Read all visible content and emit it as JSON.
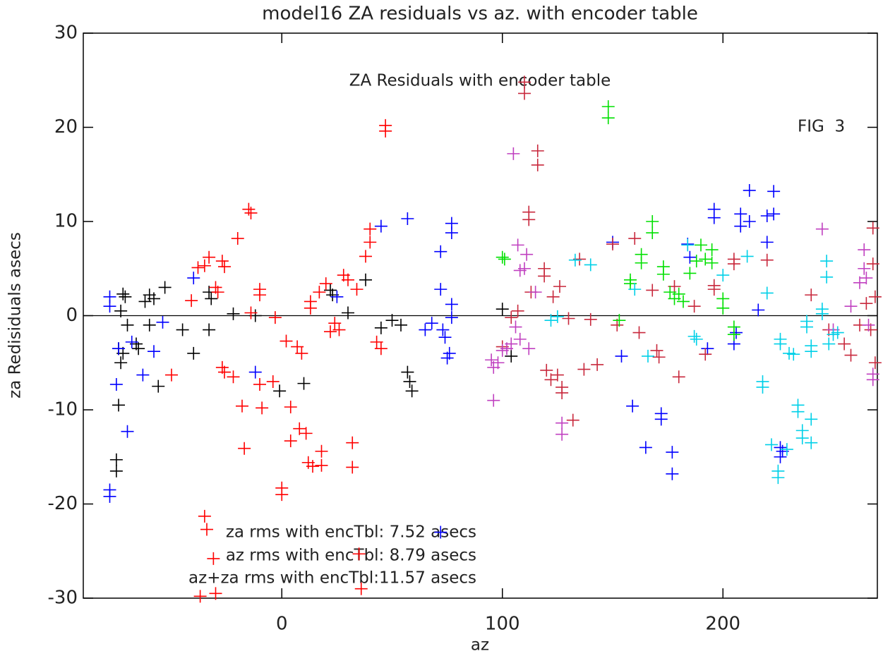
{
  "chart_data": {
    "type": "scatter",
    "title": "model16 ZA residuals vs az. with encoder table",
    "subtitle": "ZA Residuals with encoder table",
    "fig_label": "FIG  3",
    "notes": [
      "za rms with encTbl: 7.52 asecs",
      "az rms with encTbl: 8.79 asecs",
      "az+za rms with encTbl:11.57 asecs"
    ],
    "xlabel": "az",
    "ylabel": "za Redisiduals asecs",
    "xlim": [
      -90,
      270
    ],
    "ylim": [
      -30,
      30
    ],
    "xticks": [
      0,
      100,
      200
    ],
    "yticks": [
      -30,
      -20,
      -10,
      0,
      10,
      20,
      30
    ],
    "hline": 0,
    "series": [
      {
        "color": "#000000",
        "x": [
          -73,
          -72,
          -71,
          -70,
          -74,
          -73,
          -72,
          -74,
          -75,
          -75,
          -65,
          -66,
          -62,
          -60,
          -60,
          -58,
          -56,
          -53,
          -45,
          -40,
          -33,
          -33,
          -32,
          -22,
          -12,
          -1,
          22,
          23,
          30,
          38,
          45,
          50,
          54,
          57,
          58,
          59,
          100,
          104,
          10
        ],
        "values": [
          0.5,
          2.3,
          2,
          -1,
          -3.5,
          -5,
          -4,
          -9.5,
          -15.3,
          -16.5,
          -3.5,
          -3,
          1.5,
          2.2,
          -1,
          1.8,
          -7.5,
          3,
          -1.5,
          -4,
          -1.5,
          2.5,
          1.8,
          0.2,
          0,
          -8,
          2.7,
          2.2,
          0.3,
          3.8,
          -1.3,
          -0.5,
          -1,
          -6,
          -7,
          -8,
          0.7,
          -4.3,
          -7.2
        ]
      },
      {
        "color": "#0000ff",
        "x": [
          -78,
          -78,
          -78,
          -78,
          -75,
          -74,
          -70,
          -68,
          -63,
          -58,
          -54,
          -40,
          -12,
          25,
          45,
          57,
          65,
          68,
          72,
          72,
          72,
          73,
          74,
          75,
          76,
          77,
          77,
          77,
          77,
          150,
          154,
          159,
          165,
          172,
          172,
          177,
          177,
          184,
          185,
          193,
          196,
          196,
          205,
          206,
          208,
          208,
          212,
          212,
          216,
          220,
          220,
          223,
          223,
          226,
          226,
          227
        ],
        "values": [
          -18.5,
          -19.2,
          2,
          1,
          -7.3,
          -3.5,
          -12.3,
          -2.8,
          -6.3,
          -3.8,
          -0.7,
          4,
          -6,
          2,
          9.5,
          10.3,
          -1.5,
          -0.8,
          6.8,
          2.8,
          -23,
          -1.5,
          -2.3,
          -4.5,
          -4,
          9.8,
          8.8,
          1.2,
          -0.2,
          7.8,
          -4.3,
          -9.6,
          -14,
          -10.4,
          -11,
          -14.5,
          -16.8,
          7.6,
          6.2,
          -3.5,
          11.3,
          10.4,
          -3,
          -1.8,
          10.8,
          9.5,
          13.3,
          10,
          0.6,
          7.8,
          10.6,
          13.2,
          10.8,
          -14,
          -15,
          -14.4
        ]
      },
      {
        "color": "#ff0000",
        "x": [
          -38,
          -35,
          -33,
          -30,
          -29,
          -27,
          -26,
          -27,
          -26,
          -22,
          -20,
          -18,
          -17,
          -15,
          -14,
          -14,
          -10,
          -10,
          -10,
          -9,
          -4,
          -3,
          0,
          0,
          2,
          4,
          4,
          7,
          9,
          8,
          -35,
          -34,
          -31,
          -30,
          -37,
          11,
          12,
          13,
          13,
          14,
          18,
          18,
          17,
          20,
          22,
          24,
          26,
          28,
          30,
          32,
          32,
          34,
          35,
          36,
          38,
          40,
          40,
          43,
          45,
          47,
          47,
          -41,
          -50
        ],
        "values": [
          5.1,
          5.3,
          6.2,
          3,
          2.5,
          5.8,
          5.2,
          -5.5,
          -6,
          -6.5,
          8.2,
          -9.6,
          -14.1,
          11.3,
          10.9,
          0.3,
          2.8,
          2.2,
          -7.3,
          -9.8,
          -7,
          -0.2,
          -18.3,
          -19,
          -2.7,
          -9.7,
          -13.3,
          -3.3,
          -4,
          -12,
          -21.3,
          -22.7,
          -25.8,
          -29.5,
          -29.8,
          -12.5,
          -15.6,
          1.5,
          0.8,
          -16,
          -14.4,
          -15.9,
          2.5,
          3.4,
          -1.7,
          -0.8,
          -1.5,
          4.3,
          3.8,
          -13.5,
          -16.1,
          2.8,
          -25.3,
          -29,
          6.3,
          7.8,
          9.2,
          -2.8,
          -3.5,
          20.2,
          19.6,
          1.6,
          -6.3
        ]
      },
      {
        "color": "#c8283c",
        "x": [
          100,
          104,
          107,
          110,
          110,
          112,
          112,
          113,
          116,
          116,
          119,
          119,
          120,
          122,
          123,
          125,
          126,
          127,
          127,
          130,
          132,
          135,
          137,
          140,
          143,
          150,
          152,
          160,
          162,
          168,
          170,
          171,
          178,
          180,
          187,
          192,
          196,
          196,
          205,
          205,
          220,
          240,
          248,
          255,
          258,
          262,
          265,
          268,
          268,
          269,
          269,
          267
        ],
        "values": [
          -3.3,
          -0.2,
          0.5,
          24.8,
          23.6,
          11,
          10.2,
          2.5,
          17.5,
          16,
          5,
          4.2,
          -5.8,
          -6.8,
          2,
          -6.3,
          3.1,
          -7.6,
          -8.2,
          -0.3,
          -11.1,
          6,
          -5.7,
          -0.4,
          -5.2,
          7.6,
          -1,
          8.2,
          -1.8,
          2.7,
          -3.7,
          -4.4,
          3.1,
          -6.5,
          1,
          -4.1,
          3.2,
          2.8,
          5.5,
          6,
          5.9,
          2.2,
          -1.5,
          -3,
          -4.2,
          -1,
          1.3,
          9.3,
          5.5,
          2,
          -5,
          -1.5
        ]
      },
      {
        "color": "#c040c0",
        "x": [
          95,
          96,
          96,
          98,
          100,
          102,
          104,
          105,
          107,
          108,
          110,
          111,
          112,
          115,
          127,
          127,
          245,
          250,
          258,
          262,
          264,
          264,
          265,
          266,
          268,
          268,
          106,
          108
        ],
        "values": [
          -4.7,
          -5.5,
          -9,
          -5,
          -3.7,
          -3.5,
          -3,
          17.2,
          7.5,
          4.8,
          5,
          6.5,
          -3.5,
          2.5,
          -11.4,
          -12.6,
          9.2,
          -1.5,
          1,
          3.5,
          7,
          5,
          4,
          -1,
          -6.8,
          -6.2,
          -1.2,
          -2.5
        ]
      },
      {
        "color": "#00e000",
        "x": [
          100,
          101,
          148,
          148,
          158,
          158,
          163,
          163,
          168,
          168,
          173,
          173,
          176,
          178,
          180,
          182,
          185,
          188,
          190,
          192,
          195,
          195,
          200,
          200,
          205,
          205,
          153
        ],
        "values": [
          6.2,
          6,
          22.2,
          21,
          3.8,
          3.4,
          6.5,
          5.6,
          10,
          8.8,
          5.2,
          4.4,
          2.5,
          1.8,
          2.3,
          1.5,
          4.5,
          5.8,
          7.5,
          6,
          7,
          5.6,
          1.8,
          0.8,
          -1.2,
          -2,
          -0.5
        ]
      },
      {
        "color": "#00d0e8",
        "x": [
          122,
          125,
          133,
          140,
          160,
          166,
          184,
          187,
          188,
          200,
          211,
          218,
          218,
          220,
          222,
          225,
          225,
          226,
          226,
          229,
          230,
          232,
          234,
          234,
          236,
          236,
          238,
          238,
          240,
          240,
          240,
          240,
          245,
          245,
          247,
          247,
          248,
          250,
          252
        ],
        "values": [
          -0.5,
          -0.1,
          5.9,
          5.4,
          2.8,
          -4.3,
          7.5,
          -2.2,
          -2.5,
          4.3,
          6.3,
          -7,
          -7.6,
          2.4,
          -13.7,
          -16.5,
          -17.2,
          -2.5,
          -3,
          -14.2,
          -4,
          -4.1,
          -9.5,
          -10.2,
          -12.2,
          -13,
          -0.6,
          -1.2,
          -11,
          -13.5,
          -3.2,
          -3.8,
          0.7,
          0.2,
          5.8,
          4.1,
          -3,
          -2,
          -1.8
        ]
      }
    ]
  }
}
